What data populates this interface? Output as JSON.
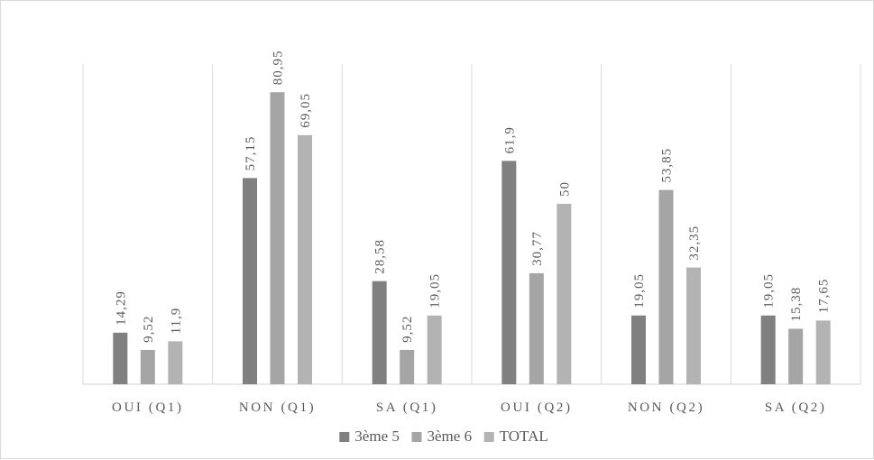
{
  "chart_data": {
    "type": "bar",
    "categories": [
      "OUI (Q1)",
      "NON (Q1)",
      "SA (Q1)",
      "OUI (Q2)",
      "NON (Q2)",
      "SA (Q2)"
    ],
    "series": [
      {
        "name": "3ème 5",
        "color": "#808080",
        "values": [
          14.29,
          57.15,
          28.58,
          61.9,
          19.05,
          19.05
        ],
        "labels": [
          "14,29",
          "57,15",
          "28,58",
          "61,9",
          "19,05",
          "19,05"
        ]
      },
      {
        "name": "3ème 6",
        "color": "#a5a5a5",
        "values": [
          9.52,
          80.95,
          9.52,
          30.77,
          53.85,
          15.38
        ],
        "labels": [
          "9,52",
          "80,95",
          "9,52",
          "30,77",
          "53,85",
          "15,38"
        ]
      },
      {
        "name": "TOTAL",
        "color": "#b3b3b3",
        "values": [
          11.9,
          69.05,
          19.05,
          50,
          32.35,
          17.65
        ],
        "labels": [
          "11,9",
          "69,05",
          "19,05",
          "50",
          "32,35",
          "17,65"
        ]
      }
    ],
    "ylim": [
      0,
      90
    ],
    "grid": "vertical category separators",
    "legend_position": "bottom",
    "data_labels": "rotated vertical above bars"
  }
}
